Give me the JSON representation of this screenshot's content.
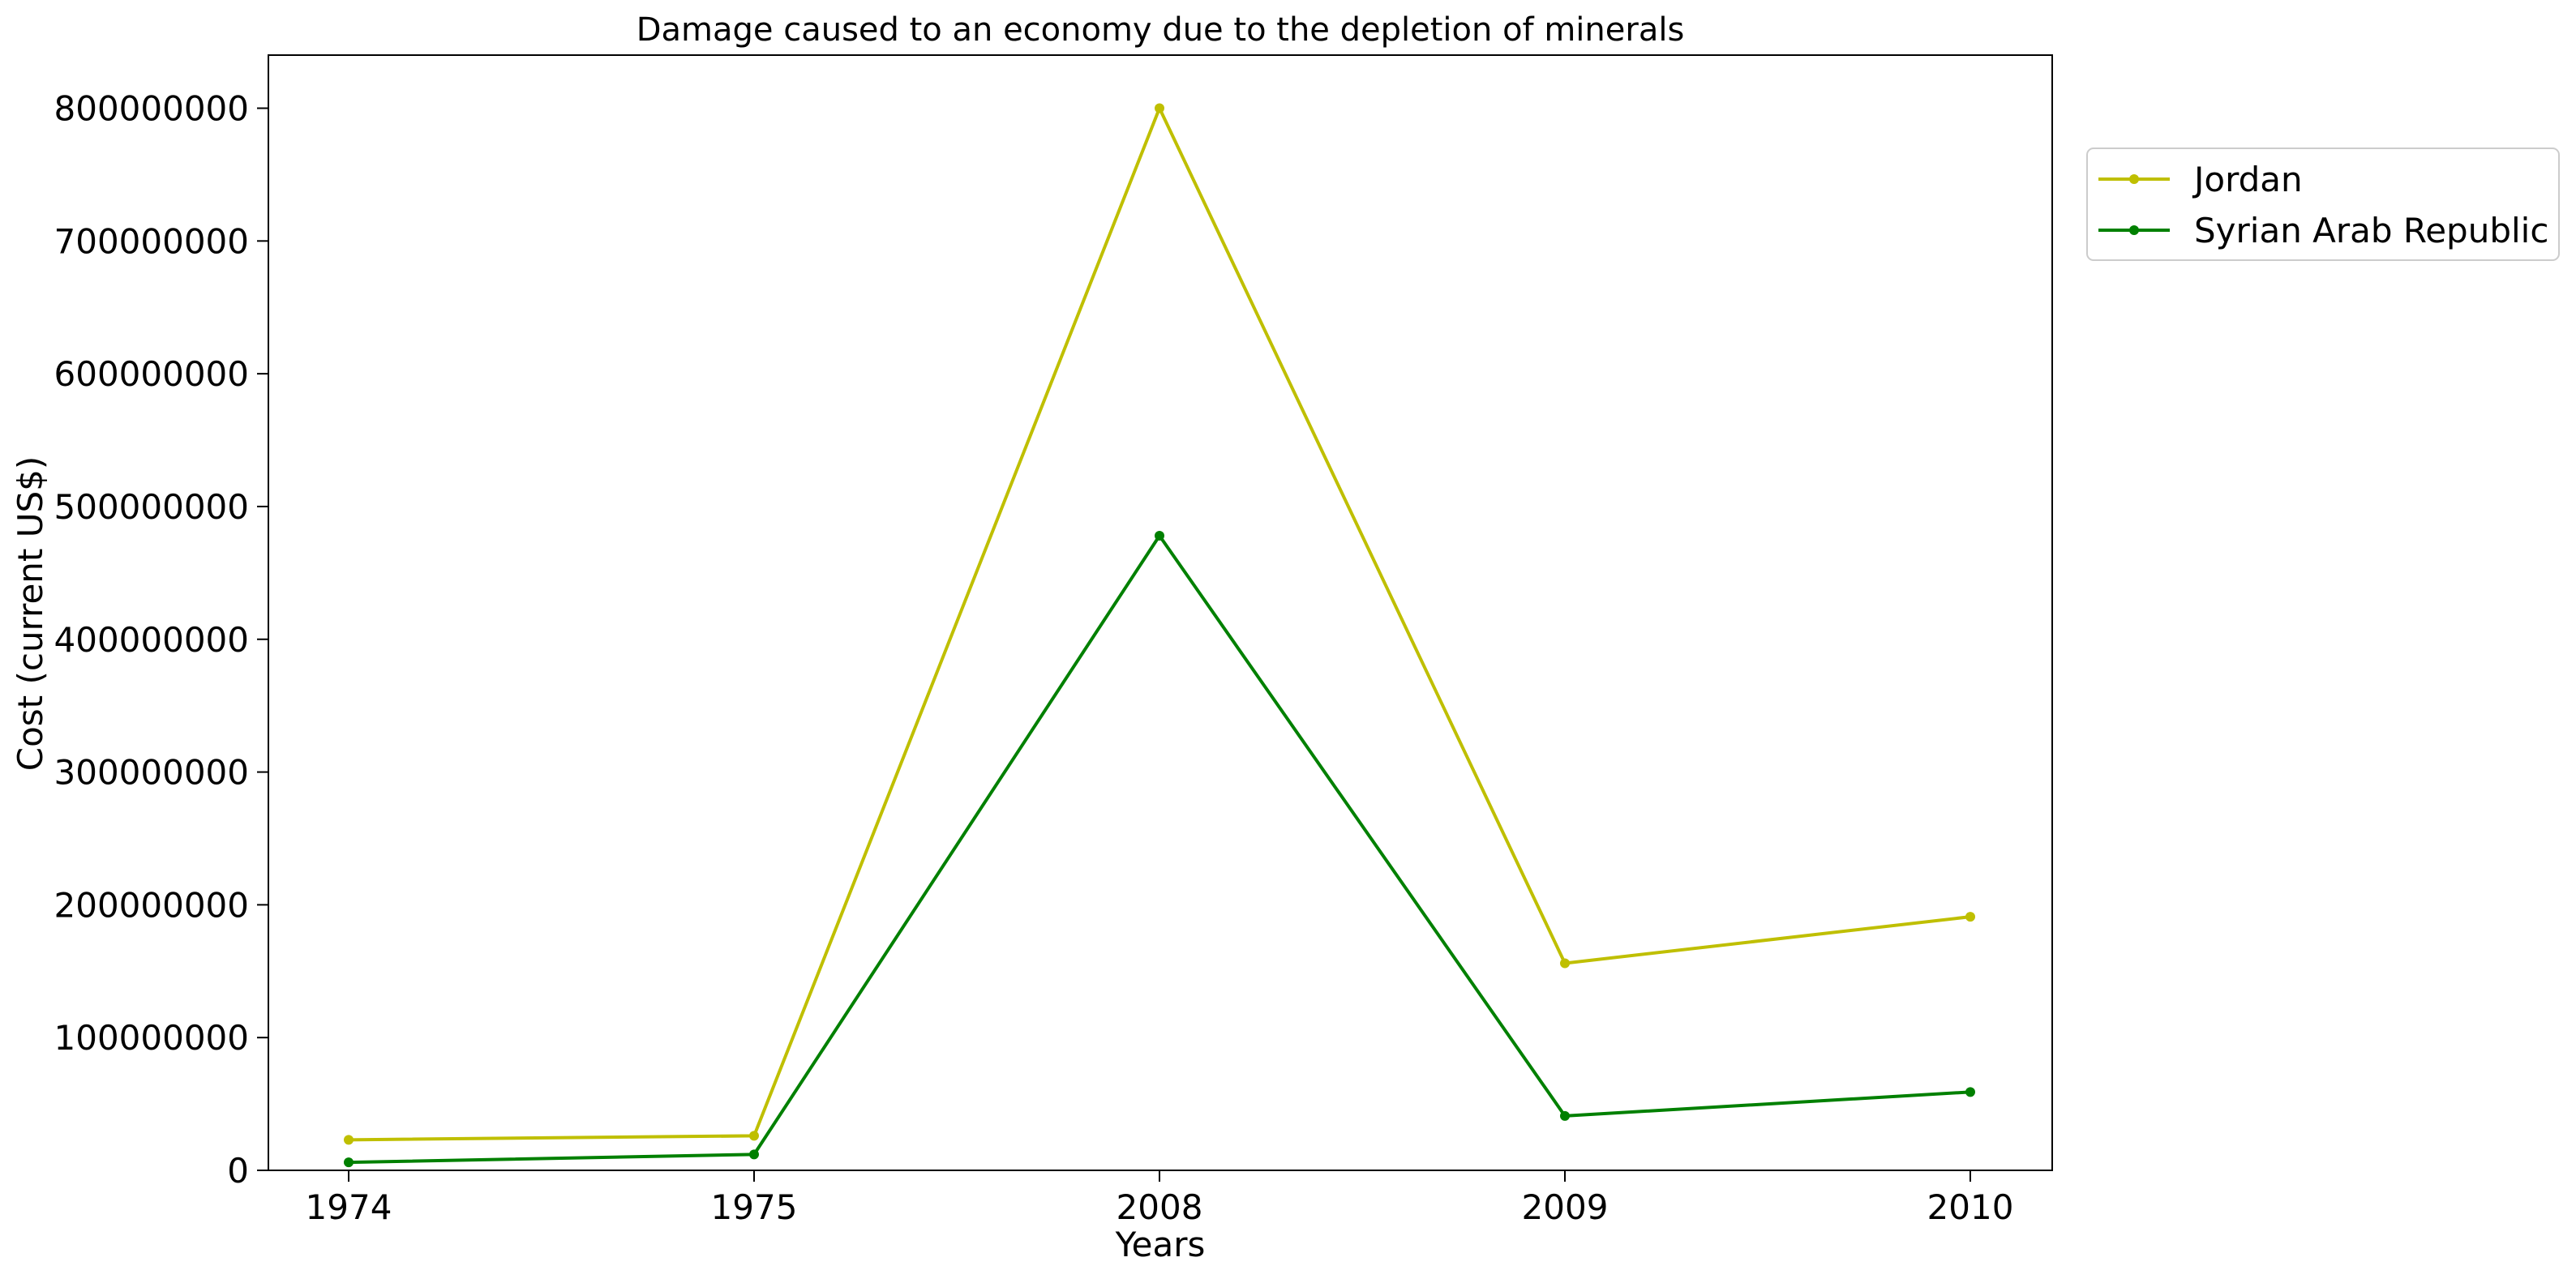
{
  "chart_data": {
    "type": "line",
    "title": "Damage caused to an economy due to the depletion of minerals",
    "xlabel": "Years",
    "ylabel": "Cost (current US$)",
    "categories": [
      "1974",
      "1975",
      "2008",
      "2009",
      "2010"
    ],
    "ylim": [
      0,
      840000000
    ],
    "yticks": [
      0,
      100000000,
      200000000,
      300000000,
      400000000,
      500000000,
      600000000,
      700000000,
      800000000
    ],
    "ytick_labels": [
      "0",
      "100000000",
      "200000000",
      "300000000",
      "400000000",
      "500000000",
      "600000000",
      "700000000",
      "800000000"
    ],
    "grid": false,
    "legend_position": "outside-top-right",
    "series": [
      {
        "name": "Jordan",
        "color": "#bfbf00",
        "values": [
          23000000,
          26000000,
          800000000,
          156000000,
          191000000
        ]
      },
      {
        "name": "Syrian Arab Republic",
        "color": "#008000",
        "values": [
          6000000,
          12000000,
          478000000,
          41000000,
          59000000
        ]
      }
    ]
  }
}
